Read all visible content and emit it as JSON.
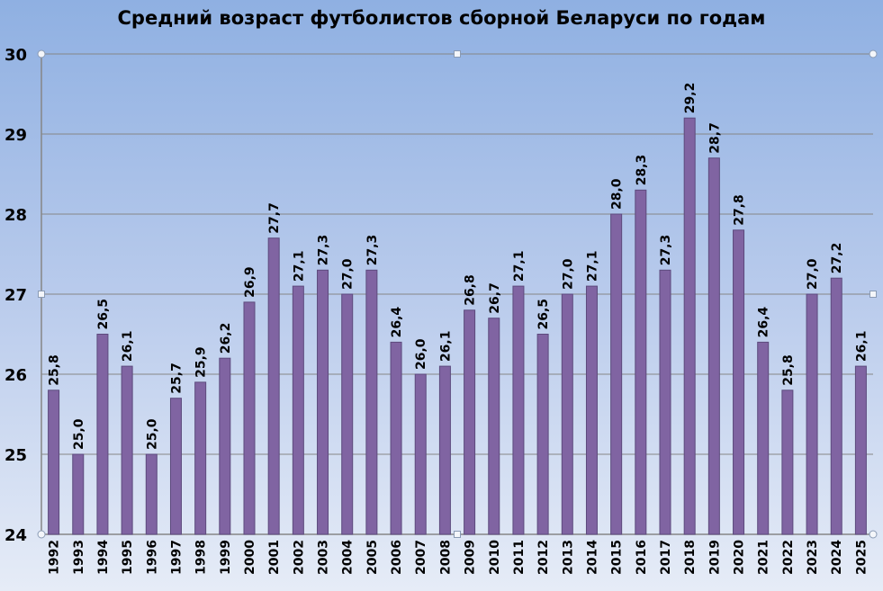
{
  "chart_data": {
    "type": "bar",
    "title": "Средний возраст футболистов сборной Беларуси по годам",
    "xlabel": "",
    "ylabel": "",
    "ylim": [
      24,
      30
    ],
    "yticks": [
      "24",
      "25",
      "26",
      "27",
      "28",
      "29",
      "30"
    ],
    "grid": true,
    "legend": "none",
    "bar_color": "#8064a2",
    "categories": [
      "1992",
      "1993",
      "1994",
      "1995",
      "1996",
      "1997",
      "1998",
      "1999",
      "2000",
      "2001",
      "2002",
      "2003",
      "2004",
      "2005",
      "2006",
      "2007",
      "2008",
      "2009",
      "2010",
      "2011",
      "2012",
      "2013",
      "2014",
      "2015",
      "2016",
      "2017",
      "2018",
      "2019",
      "2020",
      "2021",
      "2022",
      "2023",
      "2024",
      "2025"
    ],
    "values": [
      25.8,
      25.0,
      26.5,
      26.1,
      25.0,
      25.7,
      25.9,
      26.2,
      26.9,
      27.7,
      27.1,
      27.3,
      27.0,
      27.3,
      26.4,
      26.0,
      26.1,
      26.8,
      26.7,
      27.1,
      26.5,
      27.0,
      27.1,
      28.0,
      28.3,
      27.3,
      29.2,
      28.7,
      27.8,
      26.4,
      25.8,
      27.0,
      27.2,
      26.1
    ],
    "data_labels": [
      "25,8",
      "25,0",
      "26,5",
      "26,1",
      "25,0",
      "25,7",
      "25,9",
      "26,2",
      "26,9",
      "27,7",
      "27,1",
      "27,3",
      "27,0",
      "27,3",
      "26,4",
      "26,0",
      "26,1",
      "26,8",
      "26,7",
      "27,1",
      "26,5",
      "27,0",
      "27,1",
      "28,0",
      "28,3",
      "27,3",
      "29,2",
      "28,7",
      "27,8",
      "26,4",
      "25,8",
      "27,0",
      "27,2",
      "26,1"
    ]
  }
}
